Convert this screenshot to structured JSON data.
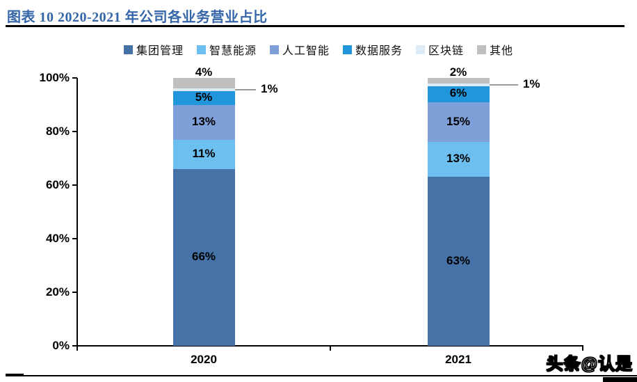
{
  "title": "图表 10 2020-2021 年公司各业务营业占比",
  "watermark": "头条@认是",
  "chart_data": {
    "type": "bar",
    "stacked": true,
    "percent_scale": true,
    "title": "图表 10 2020-2021 年公司各业务营业占比",
    "categories": [
      "2020",
      "2021"
    ],
    "series": [
      {
        "name": "集团管理",
        "color": "#4573A7",
        "values": [
          66,
          63
        ],
        "labels": [
          "66%",
          "63%"
        ],
        "label_placement": "inside"
      },
      {
        "name": "智慧能源",
        "color": "#6CBFEF",
        "values": [
          11,
          13
        ],
        "labels": [
          "11%",
          "13%"
        ],
        "label_placement": "inside"
      },
      {
        "name": "人工智能",
        "color": "#7F9FD8",
        "values": [
          13,
          15
        ],
        "labels": [
          "13%",
          "15%"
        ],
        "label_placement": "inside"
      },
      {
        "name": "数据服务",
        "color": "#2196DB",
        "values": [
          5,
          6
        ],
        "labels": [
          "5%",
          "6%"
        ],
        "label_placement": "inside"
      },
      {
        "name": "区块链",
        "color": "#DDEBF6",
        "values": [
          1,
          1
        ],
        "labels": [
          "1%",
          "1%"
        ],
        "label_placement": "callout-right"
      },
      {
        "name": "其他",
        "color": "#BFBFBF",
        "values": [
          4,
          2
        ],
        "labels": [
          "4%",
          "2%"
        ],
        "label_placement": "above"
      }
    ],
    "y_axis": {
      "tick_labels": [
        "100%",
        "80%",
        "60%",
        "40%",
        "20%",
        "0%"
      ],
      "tick_values": [
        100,
        80,
        60,
        40,
        20,
        0
      ],
      "range": [
        0,
        100
      ]
    },
    "legend_position": "top",
    "grid": false,
    "leader_line_color": "#9a9a9a"
  }
}
